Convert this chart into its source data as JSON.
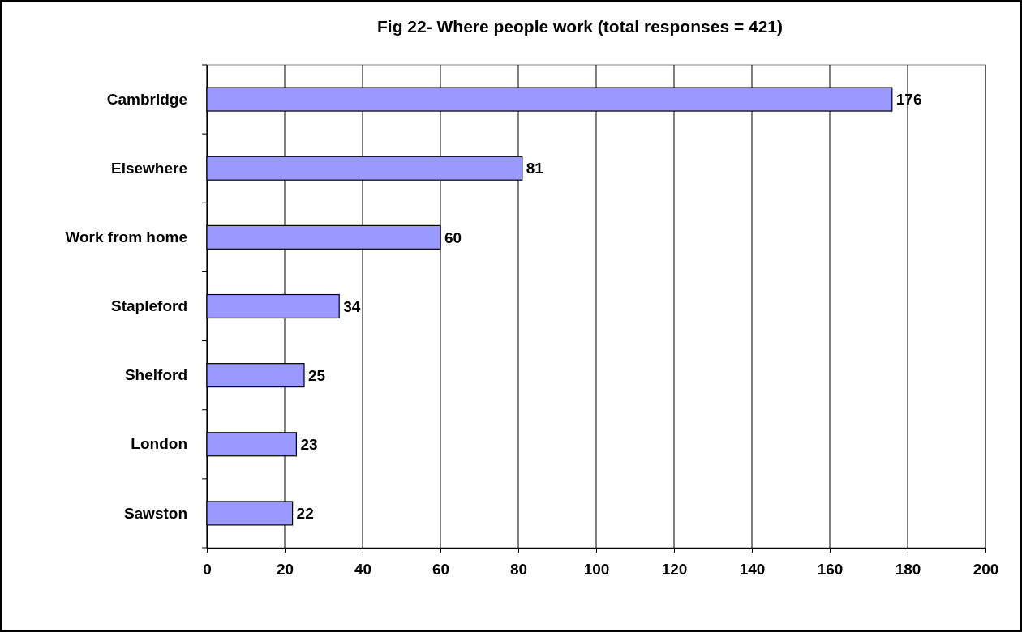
{
  "chart_data": {
    "type": "bar",
    "orientation": "horizontal",
    "title": "Fig 22- Where people work (total responses = 421)",
    "categories": [
      "Cambridge",
      "Elsewhere",
      "Work from home",
      "Stapleford",
      "Shelford",
      "London",
      "Sawston"
    ],
    "values": [
      176,
      81,
      60,
      34,
      25,
      23,
      22
    ],
    "color": "#9999ff",
    "xlim": [
      0,
      200
    ],
    "xticks": [
      0,
      20,
      40,
      60,
      80,
      100,
      120,
      140,
      160,
      180,
      200
    ],
    "grid": "x",
    "data_labels": true
  }
}
